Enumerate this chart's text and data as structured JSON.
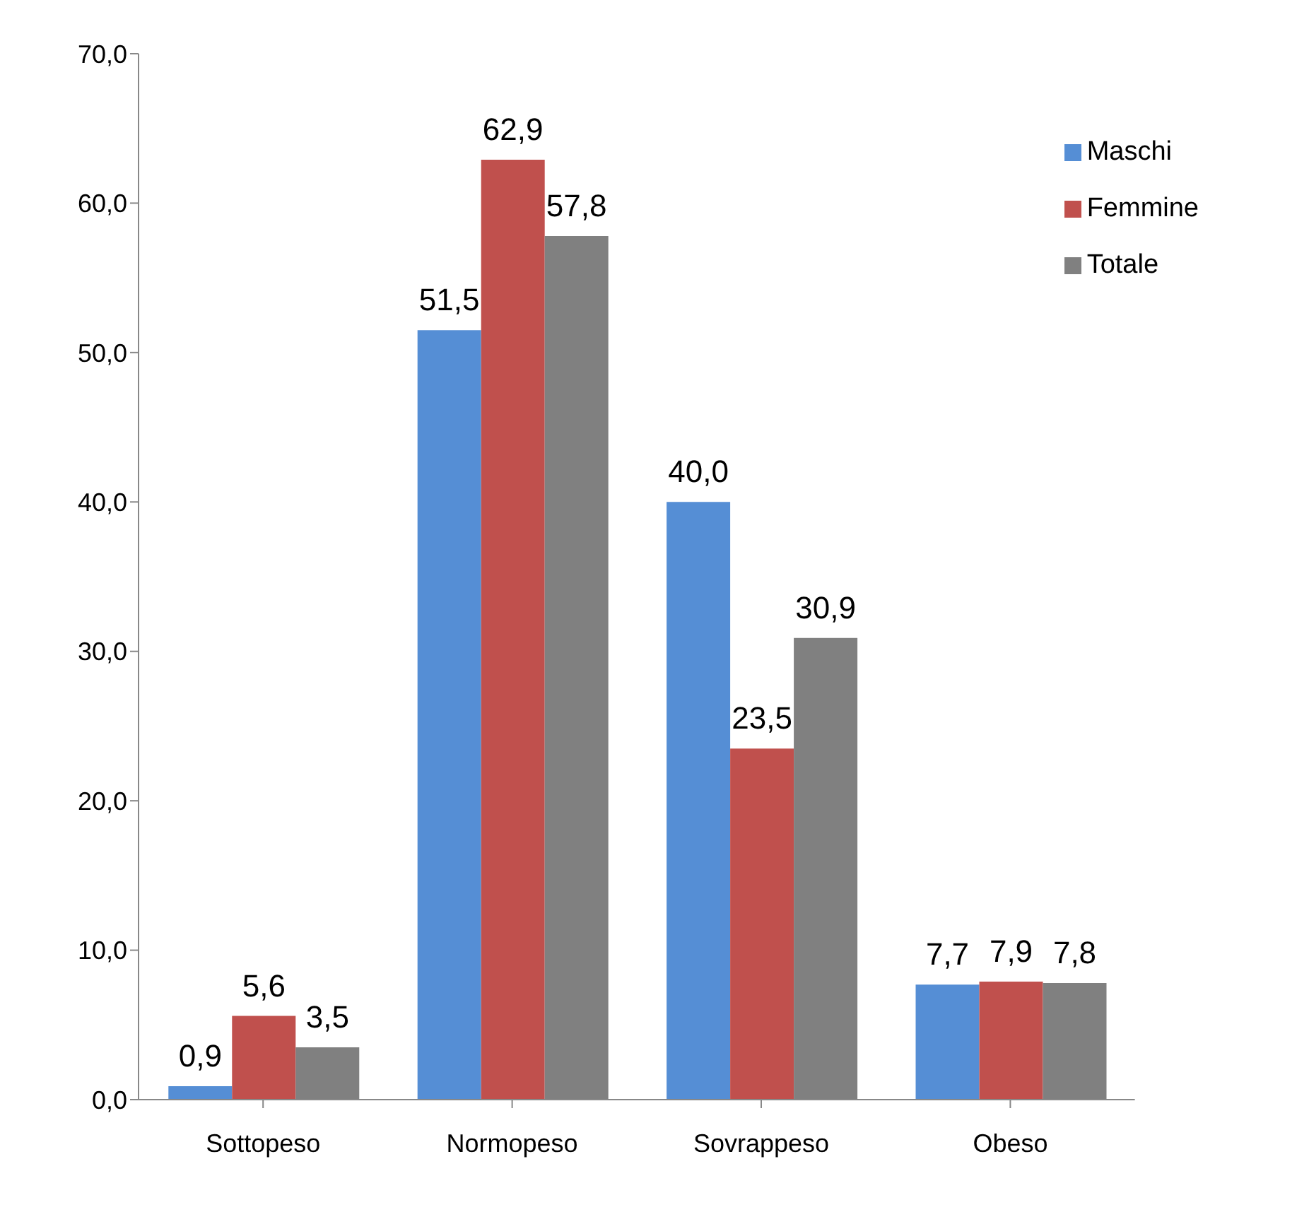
{
  "chart_data": {
    "type": "bar",
    "categories": [
      "Sottopeso",
      "Normopeso",
      "Sovrappeso",
      "Obeso"
    ],
    "series": [
      {
        "name": "Maschi",
        "color": "#558ed5",
        "values": [
          0.9,
          51.5,
          40.0,
          7.7
        ],
        "value_labels": [
          "0,9",
          "51,5",
          "40,0",
          "7,7"
        ]
      },
      {
        "name": "Femmine",
        "color": "#c0504d",
        "values": [
          5.6,
          62.9,
          23.5,
          7.9
        ],
        "value_labels": [
          "5,6",
          "62,9",
          "23,5",
          "7,9"
        ]
      },
      {
        "name": "Totale",
        "color": "#808080",
        "values": [
          3.5,
          57.8,
          30.9,
          7.8
        ],
        "value_labels": [
          "3,5",
          "57,8",
          "30,9",
          "7,8"
        ]
      }
    ],
    "ylim": [
      0,
      70
    ],
    "yticks": [
      {
        "value": 0,
        "label": "0,0"
      },
      {
        "value": 10,
        "label": "10,0"
      },
      {
        "value": 20,
        "label": "20,0"
      },
      {
        "value": 30,
        "label": "30,0"
      },
      {
        "value": 40,
        "label": "40,0"
      },
      {
        "value": 50,
        "label": "50,0"
      },
      {
        "value": 60,
        "label": "60,0"
      },
      {
        "value": 70,
        "label": "70,0"
      }
    ],
    "grid": false,
    "legend": "top right"
  }
}
